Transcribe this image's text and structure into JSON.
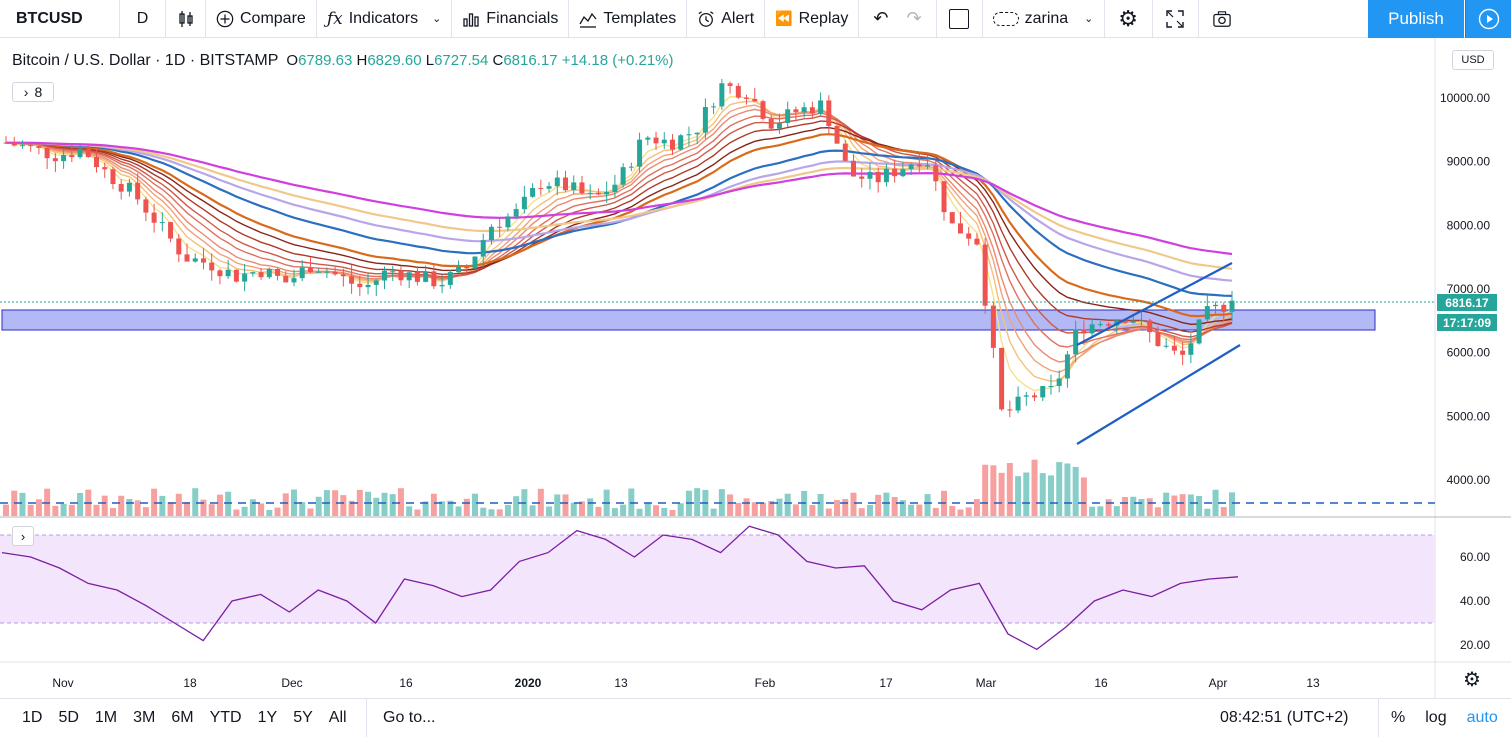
{
  "topbar": {
    "symbol": "BTCUSD",
    "interval": "D",
    "compare": "Compare",
    "indicators": "Indicators",
    "financials": "Financials",
    "templates": "Templates",
    "alert": "Alert",
    "replay": "Replay",
    "user": "zarina",
    "publish": "Publish"
  },
  "legend": {
    "title": "Bitcoin / U.S. Dollar · 1D · BITSTAMP",
    "open_label": "O",
    "open": "6789.63",
    "high_label": "H",
    "high": "6829.60",
    "low_label": "L",
    "low": "6727.54",
    "close_label": "C",
    "close": "6816.17",
    "change": "+14.18 (+0.21%)",
    "collapsed_count": "8"
  },
  "price_axis": {
    "currency": "USD",
    "last_price": "6816.17",
    "countdown": "17:17:09",
    "labels": [
      "10000.00",
      "9000.00",
      "8000.00",
      "7000.00",
      "6000.00",
      "5000.00",
      "4000.00"
    ]
  },
  "rsi_axis": {
    "labels": [
      "60.00",
      "40.00",
      "20.00"
    ]
  },
  "time_axis": {
    "labels": [
      "Nov",
      "18",
      "Dec",
      "16",
      "2020",
      "13",
      "Feb",
      "17",
      "Mar",
      "16",
      "Apr",
      "13"
    ]
  },
  "bottombar": {
    "ranges": [
      "1D",
      "5D",
      "1M",
      "3M",
      "6M",
      "YTD",
      "1Y",
      "5Y",
      "All"
    ],
    "goto": "Go to...",
    "clock": "08:42:51 (UTC+2)",
    "percent": "%",
    "log": "log",
    "auto": "auto"
  },
  "colors": {
    "up": "#26a69a",
    "down": "#ef5350",
    "accent": "#2196f3",
    "rsi": "#7b1fa2",
    "zone": "#9aa2f0",
    "trendline": "#1e5fc4"
  },
  "chart_data": {
    "type": "line",
    "title": "Bitcoin / U.S. Dollar",
    "x": [
      "Nov",
      "18",
      "Dec",
      "16",
      "2020",
      "13",
      "Feb",
      "17",
      "Mar",
      "16",
      "Apr",
      "13"
    ],
    "close_series": [
      9300,
      9200,
      9100,
      9200,
      8800,
      8500,
      8000,
      7500,
      7400,
      7200,
      7300,
      7100,
      7400,
      7200,
      7000,
      7300,
      7200,
      7100,
      7300,
      8000,
      8200,
      8700,
      8600,
      8400,
      8700,
      9400,
      9300,
      9500,
      10200,
      10100,
      9600,
      9800,
      9900,
      8800,
      8700,
      8900,
      9100,
      8000,
      7800,
      5000,
      5300,
      5400,
      6400,
      6500,
      6600,
      6200,
      5900,
      6600,
      6816
    ],
    "rsi": [
      62,
      60,
      55,
      48,
      45,
      38,
      30,
      22,
      40,
      43,
      35,
      45,
      40,
      30,
      50,
      47,
      42,
      45,
      58,
      62,
      72,
      68,
      60,
      70,
      68,
      62,
      74,
      70,
      58,
      55,
      56,
      40,
      36,
      45,
      48,
      25,
      18,
      28,
      40,
      45,
      42,
      48,
      50,
      51
    ],
    "ylim": [
      3700,
      10600
    ],
    "rsi_levels": [
      70,
      30
    ]
  }
}
